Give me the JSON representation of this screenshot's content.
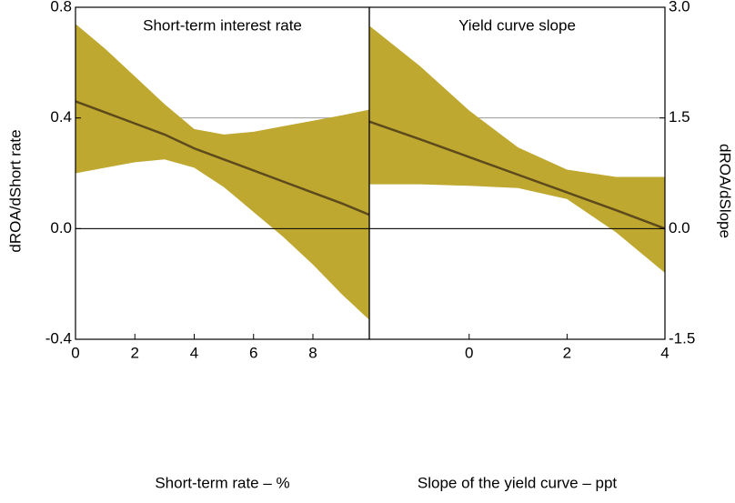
{
  "chart_data": [
    {
      "type": "band-line",
      "title": "Short-term interest rate",
      "xlabel": "Short-term rate – %",
      "ylabel": "dROA/dShort rate",
      "y_side": "left",
      "x": [
        0,
        1,
        2,
        3,
        4,
        5,
        6,
        7,
        8,
        9,
        9.9
      ],
      "xlim": [
        0,
        9.9
      ],
      "xticks": [
        0,
        2,
        4,
        6,
        8
      ],
      "ylim": [
        -0.4,
        0.8
      ],
      "yticks": [
        -0.4,
        {
          "value": 0,
          "label": "0.0"
        },
        0.4,
        0.8
      ],
      "grid": true,
      "line": {
        "color": "#5c4a1c",
        "values": [
          0.46,
          0.42,
          0.38,
          0.34,
          0.29,
          0.25,
          0.21,
          0.17,
          0.13,
          0.09,
          0.05
        ]
      },
      "band": {
        "color": "#bfa830",
        "upper": [
          0.74,
          0.65,
          0.55,
          0.45,
          0.36,
          0.34,
          0.35,
          0.37,
          0.39,
          0.41,
          0.43
        ],
        "lower": [
          0.2,
          0.22,
          0.24,
          0.25,
          0.22,
          0.15,
          0.06,
          -0.03,
          -0.13,
          -0.24,
          -0.33
        ]
      }
    },
    {
      "type": "band-line",
      "title": "Yield curve slope",
      "xlabel": "Slope of the yield curve – ppt",
      "ylabel": "dROA/dSlope",
      "y_side": "right",
      "x": [
        -2.04,
        -1,
        0,
        1,
        2,
        3,
        4
      ],
      "xlim": [
        -2.04,
        4
      ],
      "xticks": [
        0,
        2,
        4
      ],
      "ylim": [
        -1.5,
        3
      ],
      "yticks": [
        -1.5,
        {
          "value": 0,
          "label": "0.0"
        },
        1.5,
        {
          "value": 3,
          "label": "3.0"
        }
      ],
      "grid": true,
      "line": {
        "color": "#5c4a1c",
        "values": [
          1.45,
          1.21,
          0.97,
          0.73,
          0.49,
          0.25,
          0.0
        ]
      },
      "band": {
        "color": "#bfa830",
        "upper": [
          2.75,
          2.2,
          1.6,
          1.1,
          0.8,
          0.7,
          0.7
        ],
        "lower": [
          0.6,
          0.6,
          0.58,
          0.55,
          0.4,
          -0.05,
          -0.6
        ]
      }
    }
  ]
}
